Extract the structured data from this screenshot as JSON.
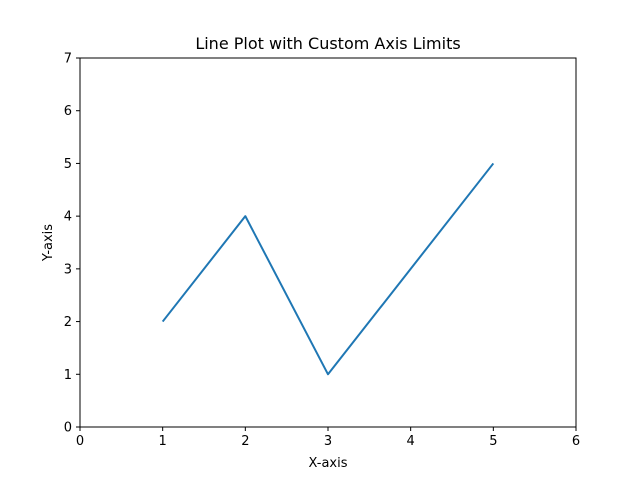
{
  "chart_data": {
    "type": "line",
    "title": "Line Plot with Custom Axis Limits",
    "xlabel": "X-axis",
    "ylabel": "Y-axis",
    "xlim": [
      0,
      6
    ],
    "ylim": [
      0,
      7
    ],
    "xticks": [
      "0",
      "1",
      "2",
      "3",
      "4",
      "5",
      "6"
    ],
    "yticks": [
      "0",
      "1",
      "2",
      "3",
      "4",
      "5",
      "6",
      "7"
    ],
    "grid": false,
    "legend": "none",
    "series": [
      {
        "color": "#1f77b4",
        "x": [
          1,
          2,
          3,
          4,
          5
        ],
        "y": [
          2,
          4,
          1,
          3,
          5
        ]
      }
    ]
  }
}
